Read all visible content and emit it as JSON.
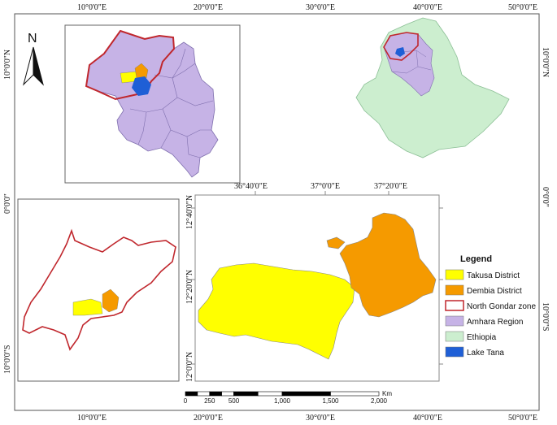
{
  "colors": {
    "takusa": "#ffff00",
    "dembia": "#f59a00",
    "north_gondar_border": "#c0272d",
    "amhara": "#c6b3e6",
    "ethiopia": "#cceecf",
    "lake_tana": "#1f5fd6",
    "frame": "#444444"
  },
  "north_arrow": {
    "label": "N"
  },
  "outer_graticule": {
    "top": [
      "10°0'0\"E",
      "20°0'0\"E",
      "30°0'0\"E",
      "40°0'0\"E",
      "50°0'0\"E"
    ],
    "bottom": [
      "10°0'0\"E",
      "20°0'0\"E",
      "30°0'0\"E",
      "40°0'0\"E",
      "50°0'0\"E"
    ],
    "left": [
      "10°0'0\"N",
      "0°0'0\"",
      "10°0'0\"S"
    ],
    "right": [
      "10°0'0\"N",
      "0°0'0\"",
      "10°0'0\"S"
    ]
  },
  "main_graticule": {
    "top": [
      "36°40'0\"E",
      "37°0'0\"E",
      "37°20'0\"E"
    ],
    "left": [
      "12°40'0\"N",
      "12°20'0\"N",
      "12°0'0\"N"
    ]
  },
  "legend": {
    "title": "Legend",
    "items": [
      {
        "label": "Takusa District",
        "color_key": "takusa"
      },
      {
        "label": "Dembia District",
        "color_key": "dembia"
      },
      {
        "label": "North Gondar zone",
        "color_key": "north_gondar_border"
      },
      {
        "label": "Amhara Region",
        "color_key": "amhara"
      },
      {
        "label": "Ethiopia",
        "color_key": "ethiopia"
      },
      {
        "label": "Lake Tana",
        "color_key": "lake_tana"
      }
    ]
  },
  "scale_bar": {
    "ticks": [
      "0",
      "250",
      "500",
      "1,000",
      "1,500",
      "2,000"
    ],
    "unit": "Km"
  }
}
